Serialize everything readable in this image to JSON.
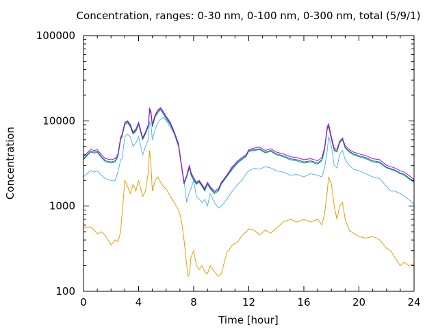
{
  "chart_data": {
    "type": "line",
    "title": "Concentration, ranges: 0-30 nm, 0-100 nm, 0-300 nm, total (5/9/1)",
    "xlabel": "Time [hour]",
    "ylabel": "Concentration",
    "xlim": [
      0,
      24
    ],
    "ylim": [
      100,
      100000
    ],
    "yscale": "log",
    "grid": false,
    "legend": "none",
    "x_ticks": [
      0,
      4,
      8,
      12,
      16,
      20,
      24
    ],
    "y_ticks": [
      100,
      1000,
      10000,
      100000
    ],
    "y_tick_labels": [
      "100",
      "1000",
      "10000",
      "100000"
    ],
    "series": [
      {
        "color": "#e69f00",
        "x": [
          0,
          0.5,
          0.8,
          1,
          1.3,
          1.6,
          2,
          2.3,
          2.5,
          2.7,
          2.8,
          3,
          3.2,
          3.4,
          3.6,
          3.8,
          4,
          4.3,
          4.5,
          4.7,
          4.8,
          4.9,
          5,
          5.2,
          5.4,
          5.6,
          5.8,
          6,
          6.3,
          6.6,
          6.9,
          7.1,
          7.3,
          7.5,
          7.6,
          7.7,
          7.8,
          8,
          8.2,
          8.4,
          8.6,
          8.8,
          9,
          9.2,
          9.5,
          9.8,
          10,
          10.4,
          10.8,
          11.2,
          11.5,
          11.8,
          12,
          12.4,
          12.8,
          13.2,
          13.6,
          14,
          14.5,
          15,
          15.5,
          16,
          16.5,
          17,
          17.3,
          17.5,
          17.7,
          17.8,
          18,
          18.2,
          18.4,
          18.6,
          18.8,
          19,
          19.3,
          19.6,
          20,
          20.5,
          21,
          21.5,
          22,
          22.3,
          22.6,
          23,
          23.3,
          23.6,
          24
        ],
        "values": [
          560,
          570,
          520,
          470,
          500,
          450,
          350,
          400,
          380,
          500,
          800,
          2000,
          1700,
          1400,
          1800,
          1500,
          2000,
          1300,
          1500,
          2500,
          4500,
          3000,
          1500,
          2000,
          2200,
          1900,
          1700,
          1600,
          1300,
          1100,
          900,
          700,
          400,
          200,
          150,
          160,
          250,
          300,
          200,
          180,
          200,
          170,
          160,
          200,
          170,
          150,
          160,
          280,
          350,
          380,
          450,
          500,
          540,
          520,
          460,
          520,
          480,
          550,
          650,
          700,
          650,
          700,
          650,
          700,
          600,
          800,
          1500,
          2200,
          1800,
          1000,
          700,
          1000,
          1100,
          700,
          520,
          480,
          440,
          420,
          440,
          400,
          320,
          300,
          250,
          200,
          220,
          200,
          210
        ]
      },
      {
        "color": "#56b4e9",
        "x": [
          0,
          0.5,
          0.8,
          1,
          1.3,
          1.6,
          2,
          2.3,
          2.5,
          2.7,
          2.8,
          3,
          3.2,
          3.4,
          3.6,
          3.8,
          4,
          4.3,
          4.5,
          4.7,
          4.8,
          4.9,
          5,
          5.2,
          5.4,
          5.6,
          5.8,
          6,
          6.3,
          6.6,
          6.9,
          7.1,
          7.3,
          7.5,
          7.6,
          7.7,
          7.8,
          8,
          8.2,
          8.4,
          8.6,
          8.8,
          9,
          9.2,
          9.5,
          9.8,
          10,
          10.4,
          10.8,
          11.2,
          11.5,
          11.8,
          12,
          12.4,
          12.8,
          13.2,
          13.6,
          14,
          14.5,
          15,
          15.5,
          16,
          16.5,
          17,
          17.3,
          17.5,
          17.7,
          17.8,
          18,
          18.2,
          18.4,
          18.6,
          18.8,
          19,
          19.3,
          19.6,
          20,
          20.5,
          21,
          21.5,
          22,
          22.3,
          22.6,
          23,
          23.3,
          23.6,
          24
        ],
        "values": [
          2200,
          2600,
          2500,
          2600,
          2300,
          2100,
          2000,
          2000,
          2500,
          3500,
          3600,
          6500,
          7000,
          6500,
          5000,
          5500,
          6500,
          4000,
          5000,
          6000,
          10000,
          9000,
          6000,
          8000,
          9500,
          10500,
          11000,
          10000,
          8500,
          7000,
          5000,
          3000,
          2000,
          1100,
          1300,
          1500,
          1600,
          2000,
          1300,
          1200,
          1100,
          1200,
          1000,
          1400,
          1100,
          950,
          1000,
          1200,
          1500,
          1800,
          2000,
          2400,
          2600,
          2800,
          2700,
          2900,
          2800,
          2600,
          2500,
          2300,
          2350,
          2200,
          2400,
          2300,
          2200,
          2800,
          4500,
          6500,
          5000,
          3000,
          2800,
          4000,
          4500,
          3500,
          3000,
          2700,
          2600,
          2400,
          2200,
          2100,
          1700,
          1500,
          1500,
          1400,
          1300,
          1200,
          1050
        ]
      },
      {
        "color": "#009e73",
        "x": [
          0,
          0.5,
          0.8,
          1,
          1.3,
          1.6,
          2,
          2.3,
          2.5,
          2.7,
          2.8,
          3,
          3.2,
          3.4,
          3.6,
          3.8,
          4,
          4.3,
          4.5,
          4.7,
          4.8,
          4.9,
          5,
          5.2,
          5.4,
          5.6,
          5.8,
          6,
          6.3,
          6.6,
          6.9,
          7.1,
          7.3,
          7.5,
          7.6,
          7.7,
          7.8,
          8,
          8.2,
          8.4,
          8.6,
          8.8,
          9,
          9.2,
          9.5,
          9.8,
          10,
          10.4,
          10.8,
          11.2,
          11.5,
          11.8,
          12,
          12.4,
          12.8,
          13.2,
          13.6,
          14,
          14.5,
          15,
          15.5,
          16,
          16.5,
          17,
          17.3,
          17.5,
          17.7,
          17.8,
          18,
          18.2,
          18.4,
          18.6,
          18.8,
          19,
          19.3,
          19.6,
          20,
          20.5,
          21,
          21.5,
          22,
          22.3,
          22.6,
          23,
          23.3,
          23.6,
          24
        ],
        "values": [
          3500,
          4300,
          4200,
          4300,
          3700,
          3300,
          3200,
          3300,
          3800,
          6000,
          6500,
          9000,
          9500,
          8500,
          7000,
          7500,
          9000,
          6000,
          7000,
          8500,
          13000,
          12000,
          8500,
          11000,
          12500,
          13500,
          12000,
          10500,
          9000,
          7000,
          5000,
          3000,
          1800,
          2200,
          2500,
          2800,
          2300,
          2000,
          1800,
          1900,
          1700,
          1500,
          1800,
          1600,
          1400,
          1500,
          1800,
          2200,
          2700,
          3200,
          3500,
          3800,
          4400,
          4500,
          4600,
          4200,
          4400,
          4000,
          3800,
          3500,
          3400,
          3200,
          3300,
          3100,
          3400,
          4500,
          8000,
          8500,
          6000,
          4500,
          4300,
          5500,
          6000,
          4800,
          4300,
          4000,
          3800,
          3600,
          3300,
          3200,
          2800,
          2700,
          2600,
          2400,
          2300,
          2100,
          1900
        ]
      },
      {
        "color": "#0072b2",
        "x": [
          0,
          0.5,
          0.8,
          1,
          1.3,
          1.6,
          2,
          2.3,
          2.5,
          2.7,
          2.8,
          3,
          3.2,
          3.4,
          3.6,
          3.8,
          4,
          4.3,
          4.5,
          4.7,
          4.8,
          4.9,
          5,
          5.2,
          5.4,
          5.6,
          5.8,
          6,
          6.3,
          6.6,
          6.9,
          7.1,
          7.3,
          7.5,
          7.6,
          7.7,
          7.8,
          8,
          8.2,
          8.4,
          8.6,
          8.8,
          9,
          9.2,
          9.5,
          9.8,
          10,
          10.4,
          10.8,
          11.2,
          11.5,
          11.8,
          12,
          12.4,
          12.8,
          13.2,
          13.6,
          14,
          14.5,
          15,
          15.5,
          16,
          16.5,
          17,
          17.3,
          17.5,
          17.7,
          17.8,
          18,
          18.2,
          18.4,
          18.6,
          18.8,
          19,
          19.3,
          19.6,
          20,
          20.5,
          21,
          21.5,
          22,
          22.3,
          22.6,
          23,
          23.3,
          23.6,
          24
        ],
        "values": [
          3600,
          4400,
          4300,
          4400,
          3800,
          3400,
          3300,
          3400,
          3900,
          6200,
          6700,
          9300,
          9800,
          8800,
          7200,
          7800,
          9300,
          6200,
          7200,
          8800,
          13500,
          12500,
          8800,
          11500,
          13000,
          14000,
          12500,
          11000,
          9300,
          7200,
          5200,
          3100,
          1850,
          2250,
          2600,
          2900,
          2400,
          2100,
          1850,
          1950,
          1750,
          1550,
          1850,
          1650,
          1450,
          1550,
          1850,
          2250,
          2800,
          3300,
          3600,
          3900,
          4500,
          4600,
          4700,
          4300,
          4500,
          4100,
          3900,
          3600,
          3500,
          3300,
          3400,
          3200,
          3500,
          4600,
          8200,
          8800,
          6200,
          4600,
          4400,
          5600,
          6100,
          4900,
          4400,
          4100,
          3900,
          3700,
          3400,
          3300,
          2850,
          2750,
          2650,
          2450,
          2350,
          2150,
          1950
        ]
      },
      {
        "color": "#cc00cc",
        "x": [
          0,
          0.5,
          0.8,
          1,
          1.3,
          1.6,
          2,
          2.3,
          2.5,
          2.7,
          2.8,
          3,
          3.2,
          3.4,
          3.6,
          3.8,
          4,
          4.3,
          4.5,
          4.7,
          4.8,
          4.9,
          5,
          5.2,
          5.4,
          5.6,
          5.8,
          6,
          6.3,
          6.6,
          6.9,
          7.1,
          7.3,
          7.5,
          7.6,
          7.7,
          7.8,
          8,
          8.2,
          8.4,
          8.6,
          8.8,
          9,
          9.2,
          9.5,
          9.8,
          10,
          10.4,
          10.8,
          11.2,
          11.5,
          11.8,
          12,
          12.4,
          12.8,
          13.2,
          13.6,
          14,
          14.5,
          15,
          15.5,
          16,
          16.5,
          17,
          17.3,
          17.5,
          17.7,
          17.8,
          18,
          18.2,
          18.4,
          18.6,
          18.8,
          19,
          19.3,
          19.6,
          20,
          20.5,
          21,
          21.5,
          22,
          22.3,
          22.6,
          23,
          23.3,
          23.6,
          24
        ],
        "values": [
          3800,
          4600,
          4500,
          4600,
          4000,
          3600,
          3500,
          3600,
          4100,
          6400,
          6900,
          9600,
          10000,
          9100,
          7400,
          8000,
          9600,
          6400,
          7400,
          9000,
          14000,
          13000,
          9100,
          11800,
          13400,
          14300,
          12800,
          11300,
          9600,
          7400,
          5400,
          3200,
          1900,
          2300,
          2700,
          3000,
          2500,
          2150,
          1900,
          2000,
          1800,
          1600,
          1900,
          1700,
          1500,
          1600,
          1900,
          2300,
          2900,
          3400,
          3700,
          4000,
          4600,
          4800,
          4900,
          4500,
          4700,
          4300,
          4100,
          3800,
          3700,
          3500,
          3600,
          3400,
          3700,
          4800,
          8600,
          9200,
          6500,
          4800,
          4600,
          5800,
          6300,
          5100,
          4600,
          4300,
          4100,
          3900,
          3600,
          3500,
          3000,
          2900,
          2800,
          2600,
          2500,
          2300,
          2050
        ]
      }
    ]
  }
}
